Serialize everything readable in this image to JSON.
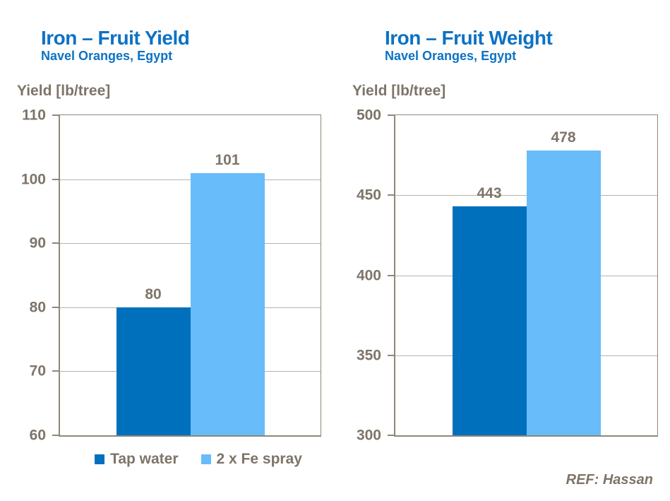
{
  "colors": {
    "title_blue": "#0d72c4",
    "axis_text_brown": "#7e7468",
    "axis_line": "#8f8778",
    "gridline": "#bbb3a5",
    "series_tap_water": "#0070bd",
    "series_fe_spray": "#68bcf9",
    "background": "#ffffff"
  },
  "legend": {
    "items": [
      {
        "label": "Tap water",
        "color": "#0070bd"
      },
      {
        "label": "2 x Fe spray",
        "color": "#68bcf9"
      }
    ]
  },
  "ref_note": "REF: Hassan",
  "chart_data": [
    {
      "type": "bar",
      "title": "Iron – Fruit Yield",
      "subtitle": "Navel Oranges, Egypt",
      "ylabel": "Yield [lb/tree]",
      "categories": [
        "Tap water",
        "2 x Fe spray"
      ],
      "series": [
        {
          "name": "Tap water",
          "color": "#0070bd",
          "value": 80
        },
        {
          "name": "2 x Fe spray",
          "color": "#68bcf9",
          "value": 101
        }
      ],
      "data_labels": [
        "80",
        "101"
      ],
      "ylim": [
        60,
        110
      ],
      "yticks": [
        110,
        100,
        90,
        80,
        70,
        60
      ],
      "grid": true,
      "legend_position": "bottom"
    },
    {
      "type": "bar",
      "title": "Iron – Fruit Weight",
      "subtitle": "Navel Oranges, Egypt",
      "ylabel": "Yield [lb/tree]",
      "categories": [
        "Tap water",
        "2 x Fe spray"
      ],
      "series": [
        {
          "name": "Tap water",
          "color": "#0070bd",
          "value": 443
        },
        {
          "name": "2 x Fe spray",
          "color": "#68bcf9",
          "value": 478
        }
      ],
      "data_labels": [
        "443",
        "478"
      ],
      "ylim": [
        300,
        500
      ],
      "yticks": [
        500,
        450,
        400,
        350,
        300
      ],
      "grid": true,
      "legend_position": "none"
    }
  ]
}
